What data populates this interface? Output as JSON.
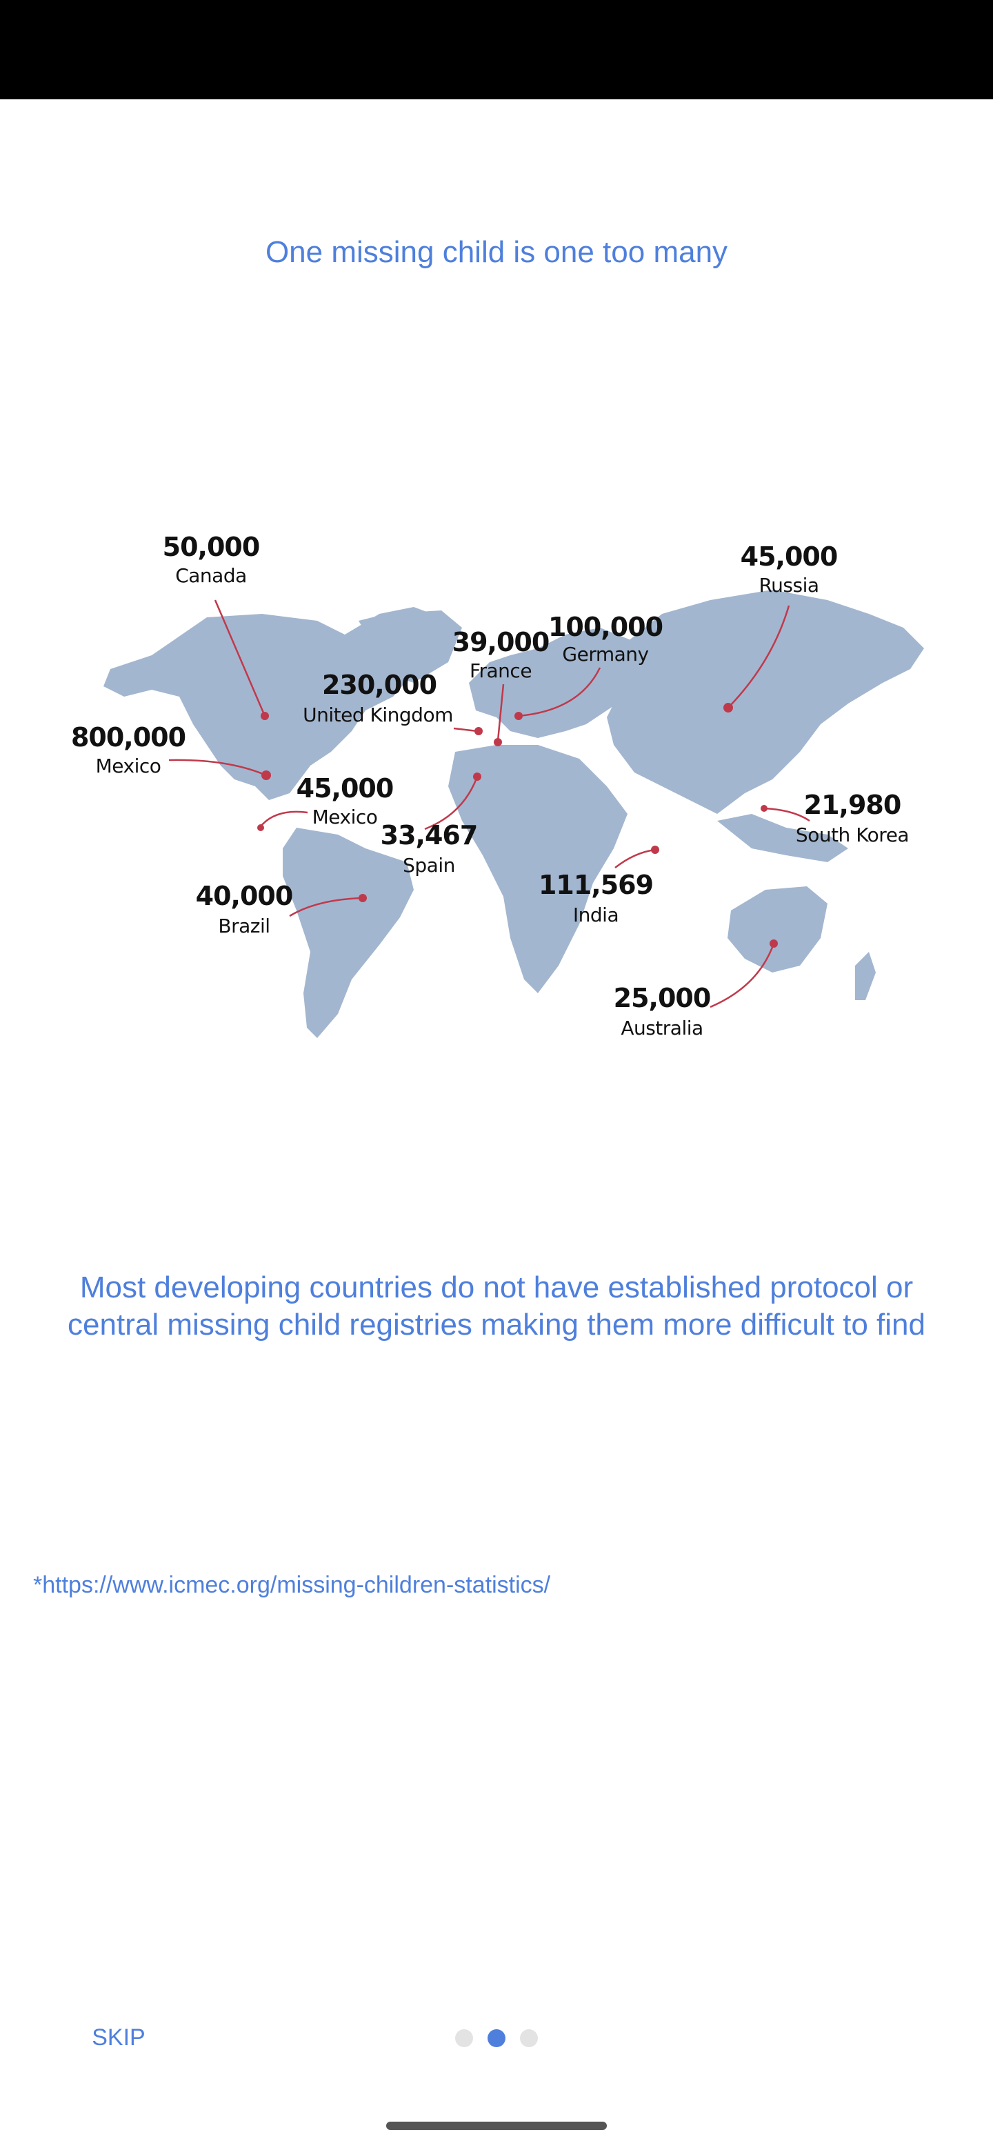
{
  "headline": "One missing child is one too many",
  "map": {
    "markers": [
      {
        "value": "50,000",
        "label": "Canada"
      },
      {
        "value": "45,000",
        "label": "Russia"
      },
      {
        "value": "100,000",
        "label": "Germany"
      },
      {
        "value": "39,000",
        "label": "France"
      },
      {
        "value": "230,000",
        "label": "United Kingdom"
      },
      {
        "value": "800,000",
        "label": "Mexico"
      },
      {
        "value": "45,000",
        "label": "Mexico"
      },
      {
        "value": "21,980",
        "label": "South Korea"
      },
      {
        "value": "33,467",
        "label": "Spain"
      },
      {
        "value": "40,000",
        "label": "Brazil"
      },
      {
        "value": "111,569",
        "label": "India"
      },
      {
        "value": "25,000",
        "label": "Australia"
      }
    ],
    "colors": {
      "land": "#a3b6cf",
      "marker": "#c0394b"
    }
  },
  "body_text": "Most developing countries do not have established protocol or central missing child registries making them more difficult to find",
  "source_link": "*https://www.icmec.org/missing-children-statistics/",
  "footer": {
    "skip_label": "SKIP",
    "page_count": 3,
    "active_page": 2
  },
  "colors": {
    "accent": "#4e7fdc",
    "status_bar": "#000000"
  }
}
